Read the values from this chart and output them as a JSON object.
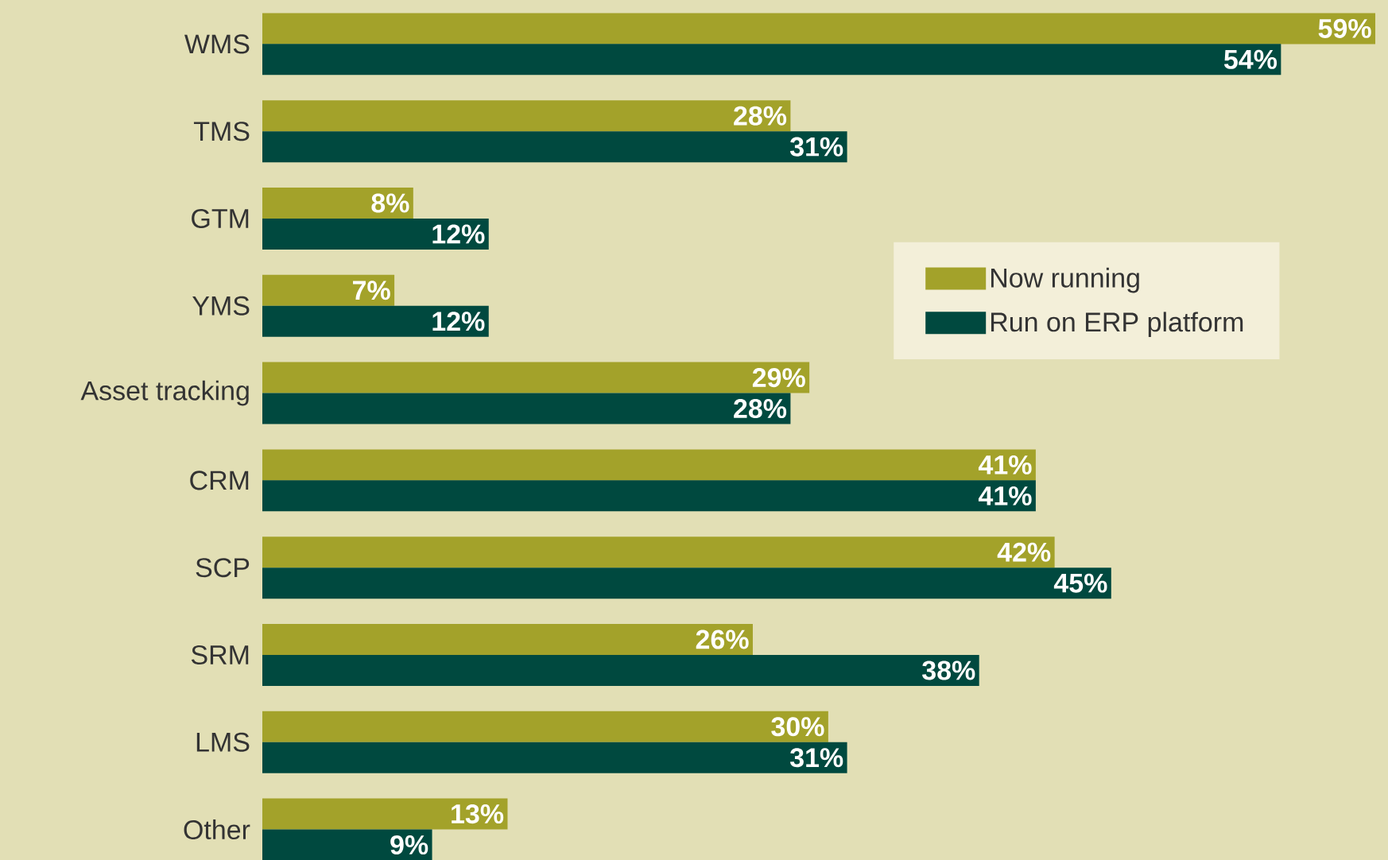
{
  "chart_data": {
    "type": "bar",
    "orientation": "horizontal",
    "categories": [
      "WMS",
      "TMS",
      "GTM",
      "YMS",
      "Asset tracking",
      "CRM",
      "SCP",
      "SRM",
      "LMS",
      "Other"
    ],
    "series": [
      {
        "name": "Now running",
        "color": "#a3a22a",
        "values": [
          59,
          28,
          8,
          7,
          29,
          41,
          42,
          26,
          30,
          13
        ],
        "value_labels": [
          "59%",
          "28%",
          "8%",
          "7%",
          "29%",
          "41%",
          "42%",
          "26%",
          "30%",
          "13%"
        ]
      },
      {
        "name": "Run on ERP platform",
        "color": "#00493f",
        "values": [
          54,
          31,
          12,
          12,
          28,
          41,
          45,
          38,
          31,
          9
        ],
        "value_labels": [
          "54%",
          "31%",
          "12%",
          "12%",
          "28%",
          "41%",
          "45%",
          "38%",
          "31%",
          "9%"
        ]
      }
    ],
    "data_labels": true,
    "legend": "right"
  }
}
